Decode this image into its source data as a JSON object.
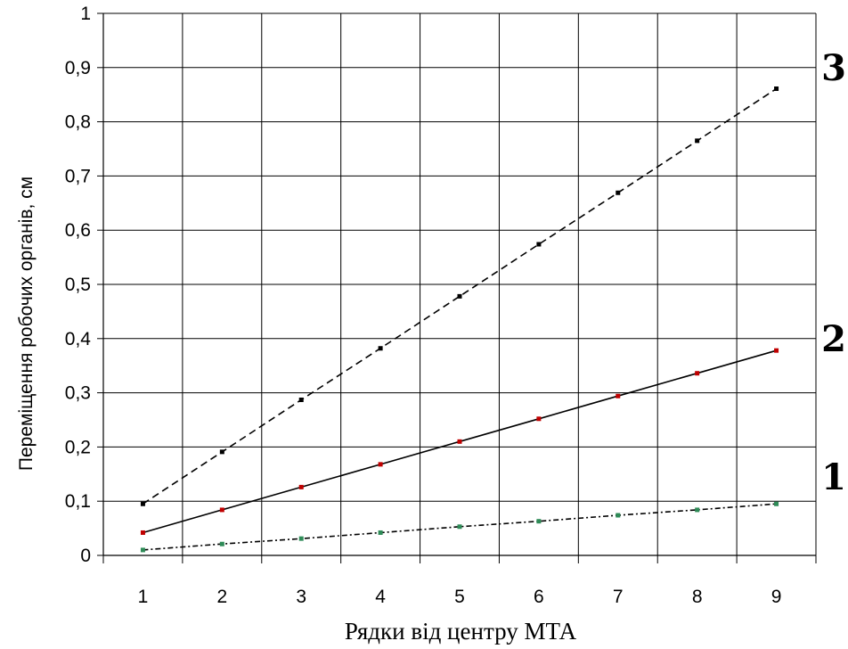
{
  "chart_data": {
    "type": "line",
    "title": "",
    "xlabel": "Рядки від центру МТА",
    "ylabel": "Переміщення робочих органів, см",
    "x": [
      1,
      2,
      3,
      4,
      5,
      6,
      7,
      8,
      9
    ],
    "x_tick_labels": [
      "1",
      "2",
      "3",
      "4",
      "5",
      "6",
      "7",
      "8",
      "9"
    ],
    "y_tick_labels": [
      "0",
      "0,1",
      "0,2",
      "0,3",
      "0,4",
      "0,5",
      "0,6",
      "0,7",
      "0,8",
      "0,9",
      "1"
    ],
    "ylim": [
      0,
      1
    ],
    "grid": true,
    "legend": "none",
    "series": [
      {
        "name": "1",
        "values": [
          0.01,
          0.021,
          0.031,
          0.042,
          0.053,
          0.063,
          0.074,
          0.084,
          0.095
        ],
        "style": "dash-dot",
        "color": "#000000",
        "marker_color": "#2e8b57"
      },
      {
        "name": "2",
        "values": [
          0.042,
          0.084,
          0.126,
          0.168,
          0.21,
          0.252,
          0.294,
          0.336,
          0.378
        ],
        "style": "solid",
        "color": "#000000",
        "marker_color": "#c00000"
      },
      {
        "name": "3",
        "values": [
          0.095,
          0.191,
          0.287,
          0.382,
          0.478,
          0.574,
          0.669,
          0.765,
          0.861
        ],
        "style": "dashed",
        "color": "#000000",
        "marker_color": "#000000"
      }
    ]
  }
}
